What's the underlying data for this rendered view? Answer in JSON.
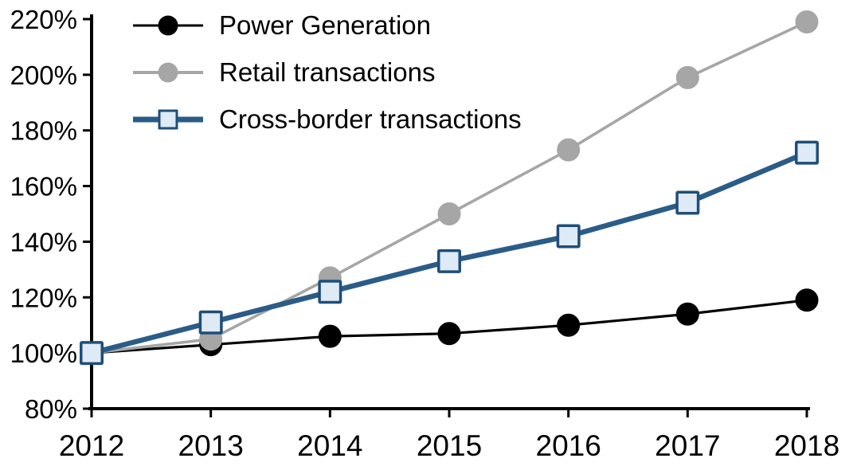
{
  "chart_data": {
    "type": "line",
    "title": "",
    "categories": [
      "2012",
      "2013",
      "2014",
      "2015",
      "2016",
      "2017",
      "2018"
    ],
    "y_axis": {
      "min": 80,
      "max": 220,
      "step": 20,
      "tick_labels": [
        "80%",
        "100%",
        "120%",
        "140%",
        "160%",
        "180%",
        "200%",
        "220%"
      ]
    },
    "grid": false,
    "legend_position": "top-left",
    "axis_color": "#000000",
    "series": [
      {
        "name": "Power Generation",
        "values": [
          100,
          103,
          106,
          107,
          110,
          114,
          119
        ],
        "line_color": "#000000",
        "marker": "circle",
        "marker_fill": "#000000",
        "marker_border": "#000000"
      },
      {
        "name": "Retail transactions",
        "values": [
          100,
          105,
          127,
          150,
          173,
          199,
          219
        ],
        "line_color": "#A6A6A6",
        "marker": "circle",
        "marker_fill": "#A6A6A6",
        "marker_border": "#A6A6A6"
      },
      {
        "name": "Cross-border transactions",
        "values": [
          100,
          111,
          122,
          133,
          142,
          154,
          172
        ],
        "line_color": "#2B5C88",
        "marker": "square",
        "marker_fill": "#DEEAF6",
        "marker_border": "#1F4E79"
      }
    ]
  }
}
